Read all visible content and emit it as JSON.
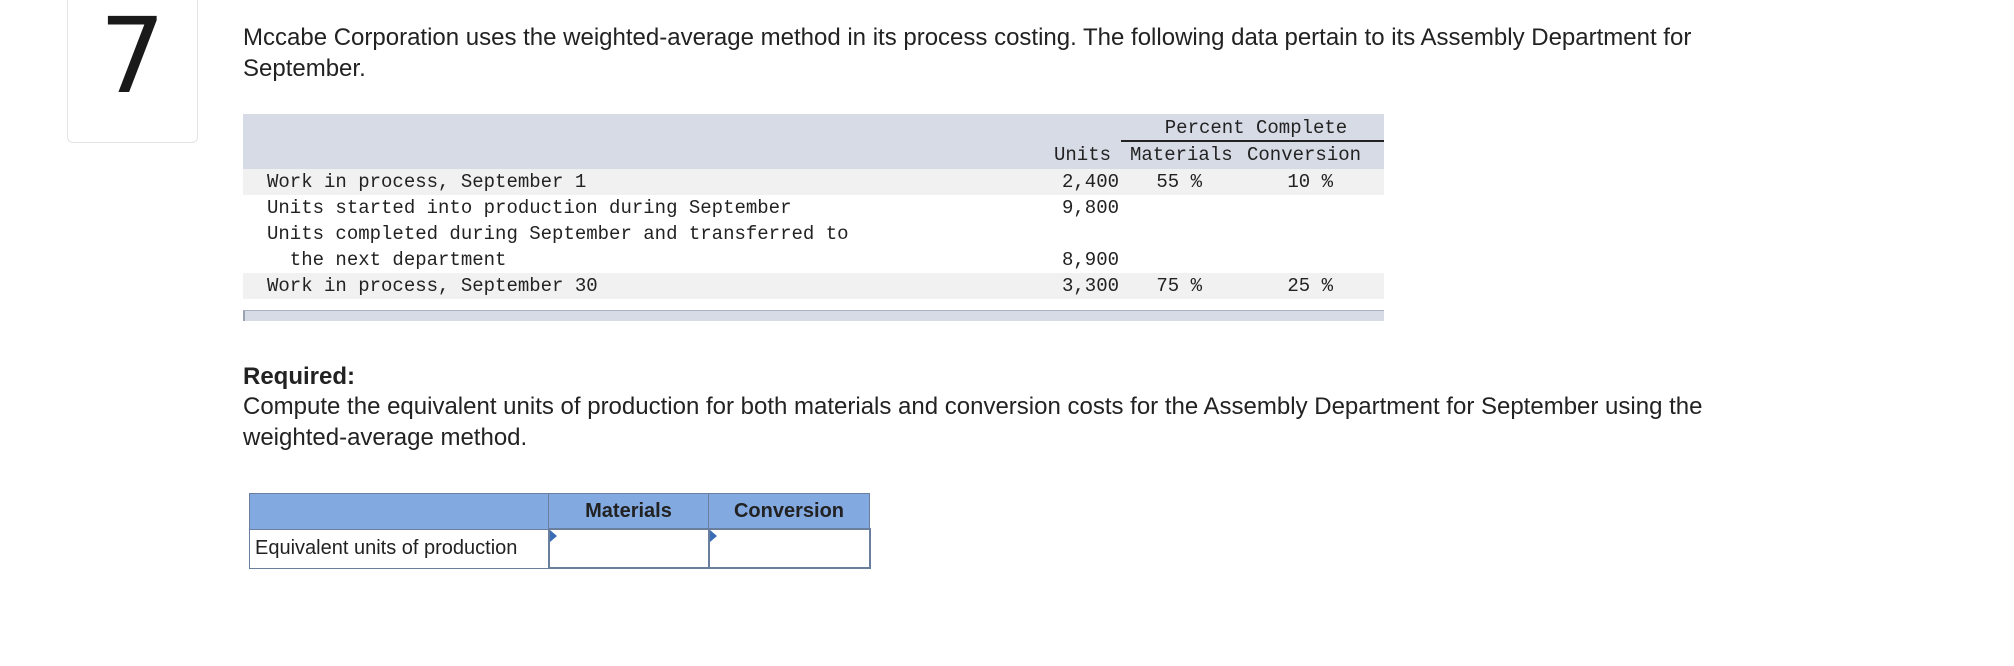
{
  "question": {
    "number": "7",
    "intro": "Mccabe Corporation uses the weighted-average method in its process costing. The following data pertain to its Assembly Department for September."
  },
  "data_table": {
    "header_group": "Percent Complete",
    "headers": {
      "units": "Units",
      "materials": "Materials",
      "conversion": "Conversion"
    },
    "rows": [
      {
        "label": "Work in process, September 1",
        "units": "2,400",
        "materials": "55 %",
        "conversion": "10 %"
      },
      {
        "label": "Units started into production during September",
        "units": "9,800",
        "materials": "",
        "conversion": ""
      },
      {
        "label": "Units completed during September and transferred to",
        "units": "",
        "materials": "",
        "conversion": ""
      },
      {
        "label": "  the next department",
        "units": "8,900",
        "materials": "",
        "conversion": ""
      },
      {
        "label": "Work in process, September 30",
        "units": "3,300",
        "materials": "75 %",
        "conversion": "25 %"
      }
    ]
  },
  "required": {
    "heading": "Required:",
    "text": "Compute the equivalent units of production for both materials and conversion costs for the Assembly Department for September using the weighted-average method."
  },
  "answer_table": {
    "headers": {
      "blank": "",
      "materials": "Materials",
      "conversion": "Conversion"
    },
    "row_label": "Equivalent units of production",
    "materials_value": "",
    "conversion_value": ""
  }
}
